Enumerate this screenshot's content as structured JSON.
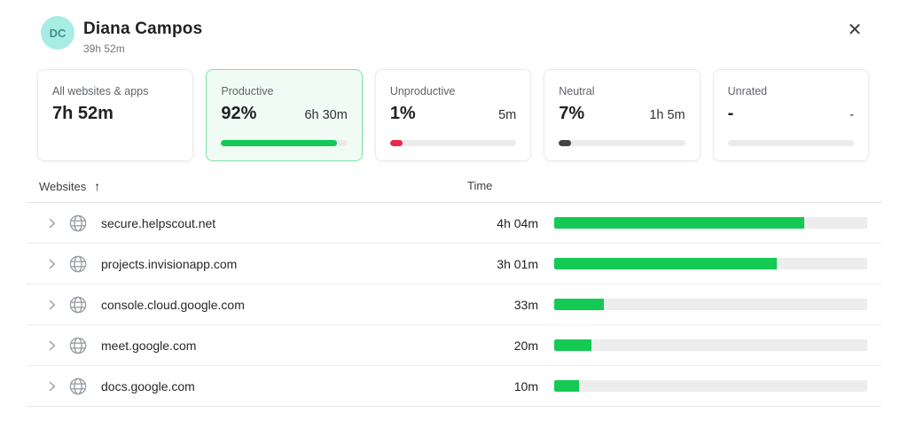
{
  "colors": {
    "productive_green": "#15c955",
    "unproductive_red": "#e8294b",
    "neutral_dark": "#474341",
    "unrated_track": "#ebebeb",
    "selected_card_border": "#82dfa8",
    "selected_card_bg": "#f1fbf5",
    "avatar_bg": "#a7ede4",
    "avatar_text": "#3e918b"
  },
  "icons": {
    "close": "✕",
    "sort_ascending": "↑",
    "row_expand": "chevron-right",
    "website": "globe"
  },
  "header": {
    "avatar_initials": "DC",
    "name": "Diana Campos",
    "total_time": "39h 52m"
  },
  "cards": [
    {
      "label": "All websites & apps",
      "value": "7h 52m",
      "time": "",
      "bar_percent": null,
      "bar_color": null,
      "selected": false
    },
    {
      "label": "Productive",
      "value": "92%",
      "time": "6h 30m",
      "bar_percent": 92,
      "bar_color": "#15c955",
      "selected": true
    },
    {
      "label": "Unproductive",
      "value": "1%",
      "time": "5m",
      "bar_percent": 10,
      "bar_color": "#e8294b",
      "selected": false
    },
    {
      "label": "Neutral",
      "value": "7%",
      "time": "1h 5m",
      "bar_percent": 10,
      "bar_color": "#474341",
      "selected": false
    },
    {
      "label": "Unrated",
      "value": "-",
      "time": "-",
      "bar_percent": 0,
      "bar_color": "#ebebeb",
      "selected": false
    }
  ],
  "table": {
    "columns": {
      "websites": "Websites",
      "time": "Time"
    },
    "sort_icon": "↑",
    "rows": [
      {
        "domain": "secure.helpscout.net",
        "time": "4h 04m",
        "bar_percent": 80,
        "bar_color": "#15c955"
      },
      {
        "domain": "projects.invisionapp.com",
        "time": "3h 01m",
        "bar_percent": 71,
        "bar_color": "#15c955"
      },
      {
        "domain": "console.cloud.google.com",
        "time": "33m",
        "bar_percent": 16,
        "bar_color": "#15c955"
      },
      {
        "domain": "meet.google.com",
        "time": "20m",
        "bar_percent": 12,
        "bar_color": "#15c955"
      },
      {
        "domain": "docs.google.com",
        "time": "10m",
        "bar_percent": 8,
        "bar_color": "#15c955"
      }
    ]
  }
}
